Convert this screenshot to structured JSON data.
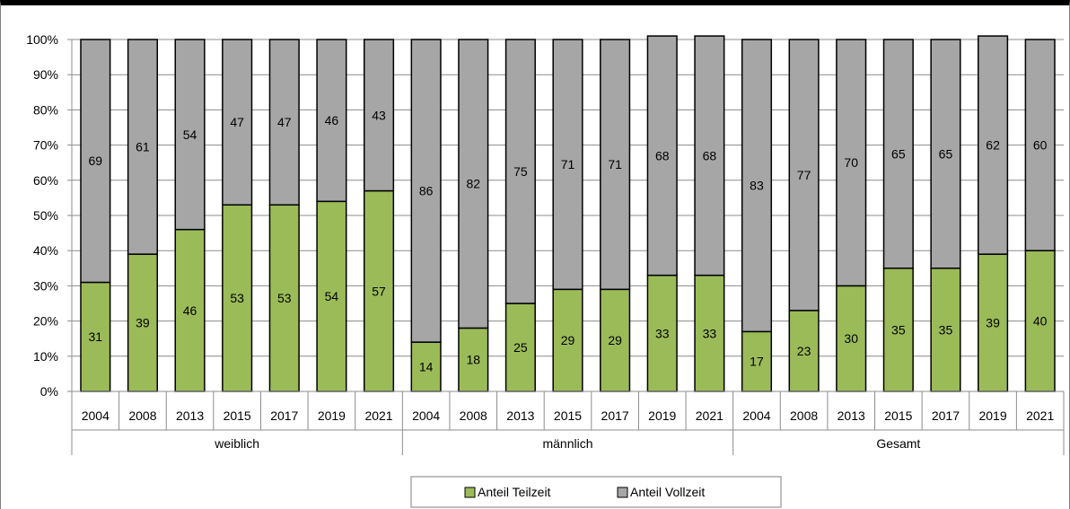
{
  "chart_data": {
    "type": "bar",
    "stacked": true,
    "percent_stacked": true,
    "title": "",
    "xlabel": "",
    "ylabel": "",
    "ylim": [
      0,
      100
    ],
    "y_ticks": [
      "0%",
      "10%",
      "20%",
      "30%",
      "40%",
      "50%",
      "60%",
      "70%",
      "80%",
      "90%",
      "100%"
    ],
    "grid": true,
    "legend_position": "bottom-center",
    "groups": [
      {
        "label": "weiblich",
        "years": [
          "2004",
          "2008",
          "2013",
          "2015",
          "2017",
          "2019",
          "2021"
        ]
      },
      {
        "label": "männlich",
        "years": [
          "2004",
          "2008",
          "2013",
          "2015",
          "2017",
          "2019",
          "2021"
        ]
      },
      {
        "label": "Gesamt",
        "years": [
          "2004",
          "2008",
          "2013",
          "2015",
          "2017",
          "2019",
          "2021"
        ]
      }
    ],
    "series": [
      {
        "name": "Anteil Teilzeit",
        "color": "#9bbb59",
        "values": [
          31,
          39,
          46,
          53,
          53,
          54,
          57,
          14,
          18,
          25,
          29,
          29,
          33,
          33,
          17,
          23,
          30,
          35,
          35,
          39,
          40
        ]
      },
      {
        "name": "Anteil Vollzeit",
        "color": "#a6a6a6",
        "values": [
          69,
          61,
          54,
          47,
          47,
          46,
          43,
          86,
          82,
          75,
          71,
          71,
          68,
          68,
          83,
          77,
          70,
          65,
          65,
          62,
          60
        ]
      }
    ]
  }
}
